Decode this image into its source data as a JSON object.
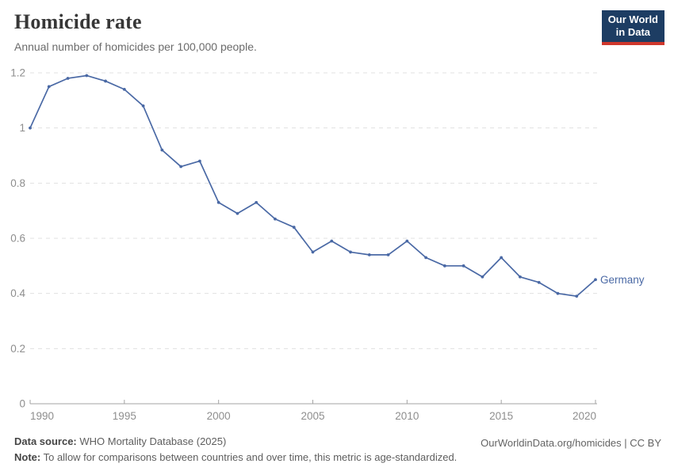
{
  "header": {
    "title": "Homicide rate",
    "subtitle": "Annual number of homicides per 100,000 people."
  },
  "logo": {
    "line1": "Our World",
    "line2": "in Data",
    "bg_color": "#1d3d63",
    "accent_color": "#cf372c"
  },
  "footer": {
    "source_label": "Data source:",
    "source_text": " WHO Mortality Database (2025)",
    "note_label": "Note:",
    "note_text": " To allow for comparisons between countries and over time, this metric is age-standardized.",
    "right_text": "OurWorldinData.org/homicides | CC BY"
  },
  "chart_data": {
    "type": "line",
    "title": "Homicide rate",
    "subtitle": "Annual number of homicides per 100,000 people.",
    "xlim": [
      1990,
      2020
    ],
    "ylim": [
      0,
      1.2
    ],
    "grid": true,
    "legend_position": "end-of-line",
    "x_ticks": [
      1990,
      1995,
      2000,
      2005,
      2010,
      2015,
      2020
    ],
    "y_ticks": [
      0,
      0.2,
      0.4,
      0.6,
      0.8,
      1,
      1.2
    ],
    "y_tick_labels": [
      "0",
      "0.2",
      "0.4",
      "0.6",
      "0.8",
      "1",
      "1.2"
    ],
    "series": [
      {
        "name": "Germany",
        "color": "#4a69a5",
        "x": [
          1990,
          1991,
          1992,
          1993,
          1994,
          1995,
          1996,
          1997,
          1998,
          1999,
          2000,
          2001,
          2002,
          2003,
          2004,
          2005,
          2006,
          2007,
          2008,
          2009,
          2010,
          2011,
          2012,
          2013,
          2014,
          2015,
          2016,
          2017,
          2018,
          2019,
          2020
        ],
        "values": [
          1.0,
          1.15,
          1.18,
          1.19,
          1.17,
          1.14,
          1.08,
          0.92,
          0.86,
          0.88,
          0.73,
          0.69,
          0.73,
          0.67,
          0.64,
          0.55,
          0.59,
          0.55,
          0.54,
          0.54,
          0.59,
          0.53,
          0.5,
          0.5,
          0.46,
          0.53,
          0.46,
          0.44,
          0.4,
          0.39,
          0.45
        ]
      }
    ],
    "axis_color": "#a3a3a3",
    "gridline_color": "#e1e1e1",
    "tick_label_color": "#8e8e8e"
  }
}
